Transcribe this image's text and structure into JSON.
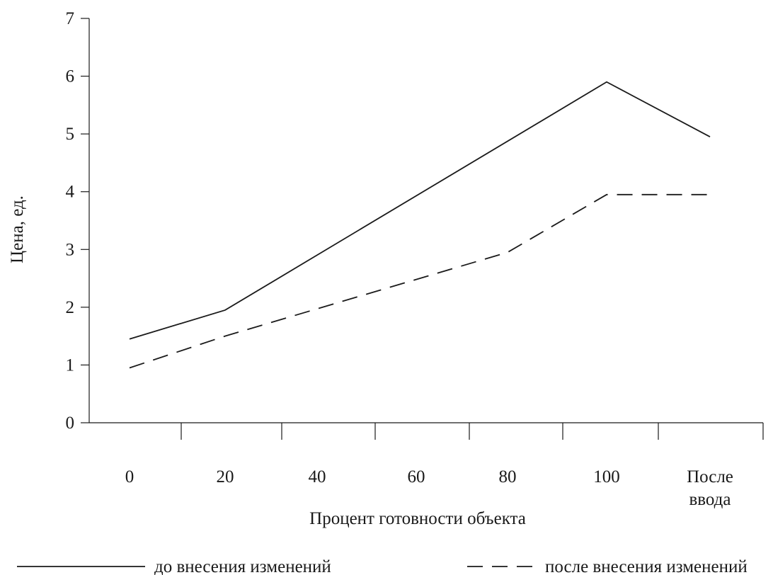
{
  "chart_data": {
    "type": "line",
    "xlabel": "Процент готовности объекта",
    "ylabel": "Цена, ед.",
    "ylim": [
      0,
      7
    ],
    "yticks": [
      0,
      1,
      2,
      3,
      4,
      5,
      6,
      7
    ],
    "categories": [
      {
        "lines": [
          "0"
        ]
      },
      {
        "lines": [
          "20"
        ]
      },
      {
        "lines": [
          "40"
        ]
      },
      {
        "lines": [
          "60"
        ]
      },
      {
        "lines": [
          "80"
        ]
      },
      {
        "lines": [
          "100"
        ]
      },
      {
        "lines": [
          "После",
          "ввода"
        ]
      }
    ],
    "series": [
      {
        "name": "до внесения изменений",
        "style": "solid",
        "color": "#1a1a1a",
        "points": [
          {
            "x": 0,
            "y": 1.45
          },
          {
            "x": 1,
            "y": 1.95
          },
          {
            "x": 5,
            "y": 5.9
          },
          {
            "x": 6,
            "y": 4.95
          }
        ]
      },
      {
        "name": "после внесения изменений",
        "style": "dashed",
        "color": "#1a1a1a",
        "points": [
          {
            "x": 0,
            "y": 0.95
          },
          {
            "x": 1,
            "y": 1.5
          },
          {
            "x": 4,
            "y": 2.95
          },
          {
            "x": 5,
            "y": 3.95
          },
          {
            "x": 6,
            "y": 3.95
          }
        ]
      }
    ],
    "legend_position": "bottom"
  }
}
